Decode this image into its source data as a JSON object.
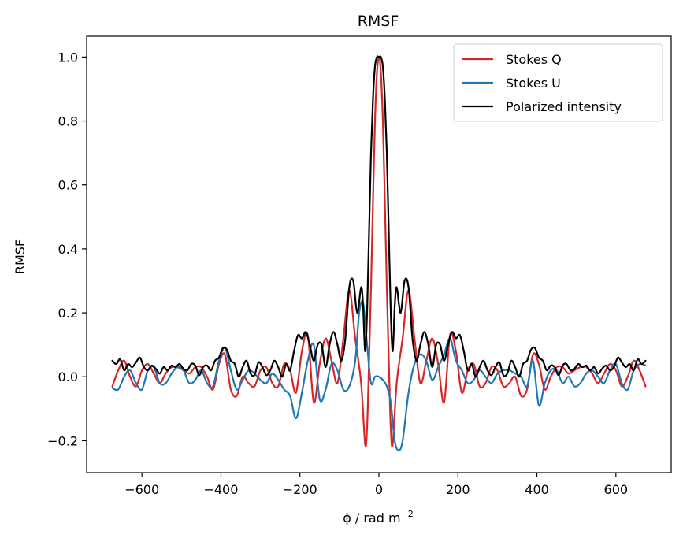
{
  "chart_data": {
    "type": "line",
    "title": "RMSF",
    "xlabel": "ϕ / rad m",
    "xlabel_superscript": "−2",
    "ylabel": "RMSF",
    "xlim": [
      -740,
      740
    ],
    "ylim": [
      -0.3,
      1.065
    ],
    "xticks": [
      -600,
      -400,
      -200,
      0,
      200,
      400,
      600
    ],
    "xtick_labels": [
      "−600",
      "−400",
      "−200",
      "0",
      "200",
      "400",
      "600"
    ],
    "yticks": [
      -0.2,
      0.0,
      0.2,
      0.4,
      0.6,
      0.8,
      1.0
    ],
    "ytick_labels": [
      "−0.2",
      "0.0",
      "0.2",
      "0.4",
      "0.6",
      "0.8",
      "1.0"
    ],
    "grid": false,
    "legend_position": "top-right",
    "series": [
      {
        "name": "Stokes Q",
        "color": "#d62728",
        "x": [
          -675,
          -660,
          -645,
          -630,
          -615,
          -600,
          -585,
          -570,
          -555,
          -540,
          -525,
          -510,
          -495,
          -480,
          -465,
          -450,
          -435,
          -420,
          -405,
          -390,
          -375,
          -360,
          -345,
          -330,
          -315,
          -300,
          -285,
          -270,
          -255,
          -240,
          -225,
          -210,
          -195,
          -180,
          -165,
          -150,
          -135,
          -120,
          -105,
          -90,
          -75,
          -60,
          -45,
          -35,
          -30,
          -25,
          -20,
          -15,
          -10,
          -5,
          0,
          5,
          10,
          15,
          20,
          25,
          30,
          35,
          45,
          60,
          75,
          90,
          105,
          120,
          135,
          150,
          165,
          180,
          195,
          210,
          225,
          240,
          255,
          270,
          285,
          300,
          315,
          330,
          345,
          360,
          375,
          390,
          405,
          420,
          435,
          450,
          465,
          480,
          495,
          510,
          525,
          540,
          555,
          570,
          585,
          600,
          615,
          630,
          645,
          660,
          675
        ],
        "y": [
          -0.03,
          0.02,
          0.05,
          0.0,
          -0.03,
          0.02,
          0.04,
          0.01,
          -0.02,
          0.01,
          0.03,
          0.03,
          0.02,
          0.01,
          0.03,
          0.03,
          0.0,
          -0.04,
          0.04,
          0.07,
          -0.04,
          -0.06,
          0.0,
          -0.02,
          -0.03,
          0.02,
          0.03,
          -0.02,
          -0.03,
          0.04,
          0.02,
          -0.05,
          0.08,
          0.13,
          -0.08,
          0.04,
          0.12,
          0.05,
          -0.02,
          0.12,
          0.27,
          0.12,
          -0.02,
          -0.21,
          -0.16,
          0.05,
          0.28,
          0.55,
          0.8,
          0.95,
          1.0,
          0.95,
          0.8,
          0.55,
          0.28,
          0.05,
          -0.16,
          -0.21,
          -0.02,
          0.12,
          0.27,
          0.12,
          -0.02,
          0.05,
          0.12,
          0.04,
          -0.08,
          0.13,
          0.08,
          -0.05,
          0.02,
          0.04,
          -0.03,
          -0.02,
          0.03,
          0.02,
          -0.03,
          -0.02,
          0.0,
          -0.06,
          -0.04,
          0.07,
          0.04,
          -0.04,
          0.0,
          0.03,
          0.03,
          0.01,
          0.02,
          0.03,
          0.03,
          0.01,
          -0.02,
          0.01,
          0.04,
          0.02,
          -0.03,
          0.0,
          0.05,
          0.02,
          -0.03
        ]
      },
      {
        "name": "Stokes U",
        "color": "#1f77b4",
        "x": [
          -675,
          -660,
          -645,
          -630,
          -615,
          -600,
          -585,
          -570,
          -555,
          -540,
          -525,
          -510,
          -495,
          -480,
          -465,
          -450,
          -435,
          -420,
          -405,
          -390,
          -375,
          -360,
          -345,
          -330,
          -315,
          -300,
          -285,
          -270,
          -255,
          -240,
          -225,
          -210,
          -195,
          -180,
          -165,
          -150,
          -135,
          -120,
          -105,
          -90,
          -75,
          -60,
          -50,
          -40,
          -30,
          -20,
          -10,
          0,
          10,
          20,
          30,
          40,
          50,
          60,
          75,
          90,
          105,
          120,
          135,
          150,
          165,
          180,
          195,
          210,
          225,
          240,
          255,
          270,
          285,
          300,
          315,
          330,
          345,
          360,
          375,
          390,
          405,
          420,
          435,
          450,
          465,
          480,
          495,
          510,
          525,
          540,
          555,
          570,
          585,
          600,
          615,
          630,
          645,
          660,
          675
        ],
        "y": [
          -0.035,
          -0.04,
          0.0,
          0.02,
          -0.02,
          -0.04,
          0.02,
          0.03,
          -0.02,
          -0.02,
          0.01,
          0.03,
          0.02,
          -0.02,
          -0.01,
          0.02,
          -0.02,
          -0.03,
          0.05,
          0.09,
          0.02,
          -0.04,
          -0.01,
          0.02,
          0.01,
          -0.01,
          -0.02,
          0.01,
          -0.01,
          -0.04,
          -0.06,
          -0.13,
          -0.05,
          0.05,
          0.1,
          -0.07,
          -0.04,
          0.04,
          0.02,
          -0.04,
          -0.03,
          0.05,
          0.2,
          0.23,
          0.1,
          -0.02,
          0.0,
          0.0,
          -0.01,
          -0.03,
          -0.08,
          -0.2,
          -0.23,
          -0.2,
          -0.05,
          0.04,
          0.07,
          0.05,
          -0.01,
          0.03,
          0.07,
          0.12,
          0.05,
          0.02,
          -0.02,
          -0.01,
          0.02,
          0.0,
          -0.02,
          0.01,
          0.02,
          0.02,
          0.01,
          0.0,
          -0.03,
          0.05,
          -0.09,
          -0.02,
          0.02,
          0.02,
          -0.02,
          0.0,
          -0.03,
          -0.02,
          0.01,
          0.02,
          0.0,
          -0.02,
          0.02,
          0.04,
          -0.02,
          -0.04,
          0.02,
          0.04,
          0.035
        ]
      },
      {
        "name": "Polarized intensity",
        "color": "#000000",
        "x": [
          -675,
          -665,
          -655,
          -645,
          -635,
          -625,
          -615,
          -605,
          -595,
          -585,
          -575,
          -565,
          -555,
          -545,
          -535,
          -525,
          -515,
          -505,
          -495,
          -485,
          -475,
          -465,
          -455,
          -445,
          -435,
          -425,
          -415,
          -405,
          -395,
          -385,
          -375,
          -365,
          -355,
          -345,
          -335,
          -325,
          -315,
          -305,
          -295,
          -285,
          -275,
          -265,
          -255,
          -245,
          -235,
          -225,
          -215,
          -205,
          -195,
          -185,
          -175,
          -165,
          -155,
          -145,
          -135,
          -125,
          -115,
          -105,
          -95,
          -85,
          -75,
          -65,
          -55,
          -45,
          -40,
          -35,
          -30,
          -25,
          -20,
          -15,
          -10,
          -5,
          0,
          5,
          10,
          15,
          20,
          25,
          30,
          35,
          40,
          45,
          55,
          65,
          75,
          85,
          95,
          105,
          115,
          125,
          135,
          145,
          155,
          165,
          175,
          185,
          195,
          205,
          215,
          225,
          235,
          245,
          255,
          265,
          275,
          285,
          295,
          305,
          315,
          325,
          335,
          345,
          355,
          365,
          375,
          385,
          395,
          405,
          415,
          425,
          435,
          445,
          455,
          465,
          475,
          485,
          495,
          505,
          515,
          525,
          535,
          545,
          555,
          565,
          575,
          585,
          595,
          605,
          615,
          625,
          635,
          645,
          655,
          665,
          675
        ],
        "y": [
          0.05,
          0.04,
          0.055,
          0.02,
          0.04,
          0.03,
          0.045,
          0.06,
          0.03,
          0.02,
          0.035,
          0.025,
          0.01,
          0.03,
          0.02,
          0.035,
          0.03,
          0.04,
          0.025,
          0.02,
          0.04,
          0.035,
          0.005,
          0.03,
          0.035,
          0.02,
          0.05,
          0.06,
          0.09,
          0.085,
          0.05,
          0.04,
          0.0,
          0.03,
          0.05,
          0.01,
          0.005,
          0.045,
          0.03,
          0.005,
          0.02,
          0.05,
          0.03,
          0.0,
          0.04,
          0.02,
          0.08,
          0.13,
          0.12,
          0.14,
          0.1,
          0.05,
          0.1,
          0.1,
          0.03,
          0.1,
          0.14,
          0.1,
          0.05,
          0.12,
          0.28,
          0.3,
          0.2,
          0.28,
          0.22,
          0.08,
          0.2,
          0.45,
          0.7,
          0.87,
          0.97,
          1.0,
          1.0,
          1.0,
          0.97,
          0.87,
          0.7,
          0.45,
          0.2,
          0.08,
          0.22,
          0.28,
          0.2,
          0.3,
          0.28,
          0.12,
          0.05,
          0.1,
          0.14,
          0.1,
          0.03,
          0.1,
          0.1,
          0.05,
          0.1,
          0.14,
          0.12,
          0.13,
          0.08,
          0.02,
          0.04,
          0.0,
          0.03,
          0.05,
          0.02,
          0.005,
          0.03,
          0.045,
          0.005,
          0.01,
          0.05,
          0.03,
          0.0,
          0.04,
          0.05,
          0.085,
          0.09,
          0.06,
          0.05,
          0.02,
          0.035,
          0.03,
          0.005,
          0.035,
          0.04,
          0.02,
          0.025,
          0.04,
          0.03,
          0.035,
          0.02,
          0.03,
          0.01,
          0.025,
          0.035,
          0.02,
          0.03,
          0.06,
          0.045,
          0.03,
          0.04,
          0.02,
          0.055,
          0.04,
          0.05
        ]
      }
    ]
  }
}
